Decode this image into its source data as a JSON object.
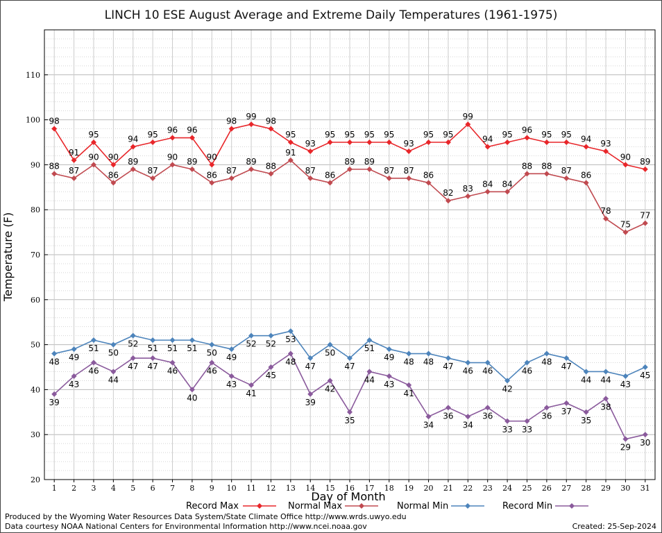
{
  "chart_data": {
    "type": "line",
    "title": "LINCH 10 ESE August Average and Extreme Daily Temperatures (1961-1975)",
    "xlabel": "Day of Month",
    "ylabel": "Temperature (F)",
    "ylim": [
      20,
      120
    ],
    "yticks": [
      20,
      30,
      40,
      50,
      60,
      70,
      80,
      90,
      100,
      110
    ],
    "grid": true,
    "legend_position": "bottom",
    "x": [
      1,
      2,
      3,
      4,
      5,
      6,
      7,
      8,
      9,
      10,
      11,
      12,
      13,
      14,
      15,
      16,
      17,
      18,
      19,
      20,
      21,
      22,
      23,
      24,
      25,
      26,
      27,
      28,
      29,
      30,
      31
    ],
    "series": [
      {
        "name": "Record Max",
        "color": "#e8262a",
        "label_position": "above",
        "values": [
          98,
          91,
          95,
          90,
          94,
          95,
          96,
          96,
          90,
          98,
          99,
          98,
          95,
          93,
          95,
          95,
          95,
          95,
          93,
          95,
          95,
          99,
          94,
          95,
          96,
          95,
          95,
          94,
          93,
          90,
          89
        ]
      },
      {
        "name": "Normal Max",
        "color": "#c04a50",
        "label_position": "above",
        "values": [
          88,
          87,
          90,
          86,
          89,
          87,
          90,
          89,
          86,
          87,
          89,
          88,
          91,
          87,
          86,
          89,
          89,
          87,
          87,
          86,
          82,
          83,
          84,
          84,
          88,
          88,
          87,
          86,
          78,
          75,
          77
        ]
      },
      {
        "name": "Normal Min",
        "color": "#4d84bb",
        "label_position": "below",
        "values": [
          48,
          49,
          51,
          50,
          52,
          51,
          51,
          51,
          50,
          49,
          52,
          52,
          53,
          47,
          50,
          47,
          51,
          49,
          48,
          48,
          47,
          46,
          46,
          42,
          46,
          48,
          47,
          44,
          44,
          43,
          45
        ]
      },
      {
        "name": "Record Min",
        "color": "#8a5a9c",
        "label_position": "below",
        "values": [
          39,
          43,
          46,
          44,
          47,
          47,
          46,
          40,
          46,
          43,
          41,
          45,
          48,
          39,
          42,
          35,
          44,
          43,
          41,
          34,
          36,
          34,
          36,
          33,
          33,
          36,
          37,
          35,
          38,
          29,
          30
        ]
      }
    ]
  },
  "footer": {
    "producer": "Produced by the Wyoming Water Resources Data System/State Climate Office http://www.wrds.uwyo.edu",
    "courtesy": "Data courtesy NOAA National Centers for Environmental Information http://www.ncei.noaa.gov",
    "created": "Created:  25-Sep-2024"
  }
}
